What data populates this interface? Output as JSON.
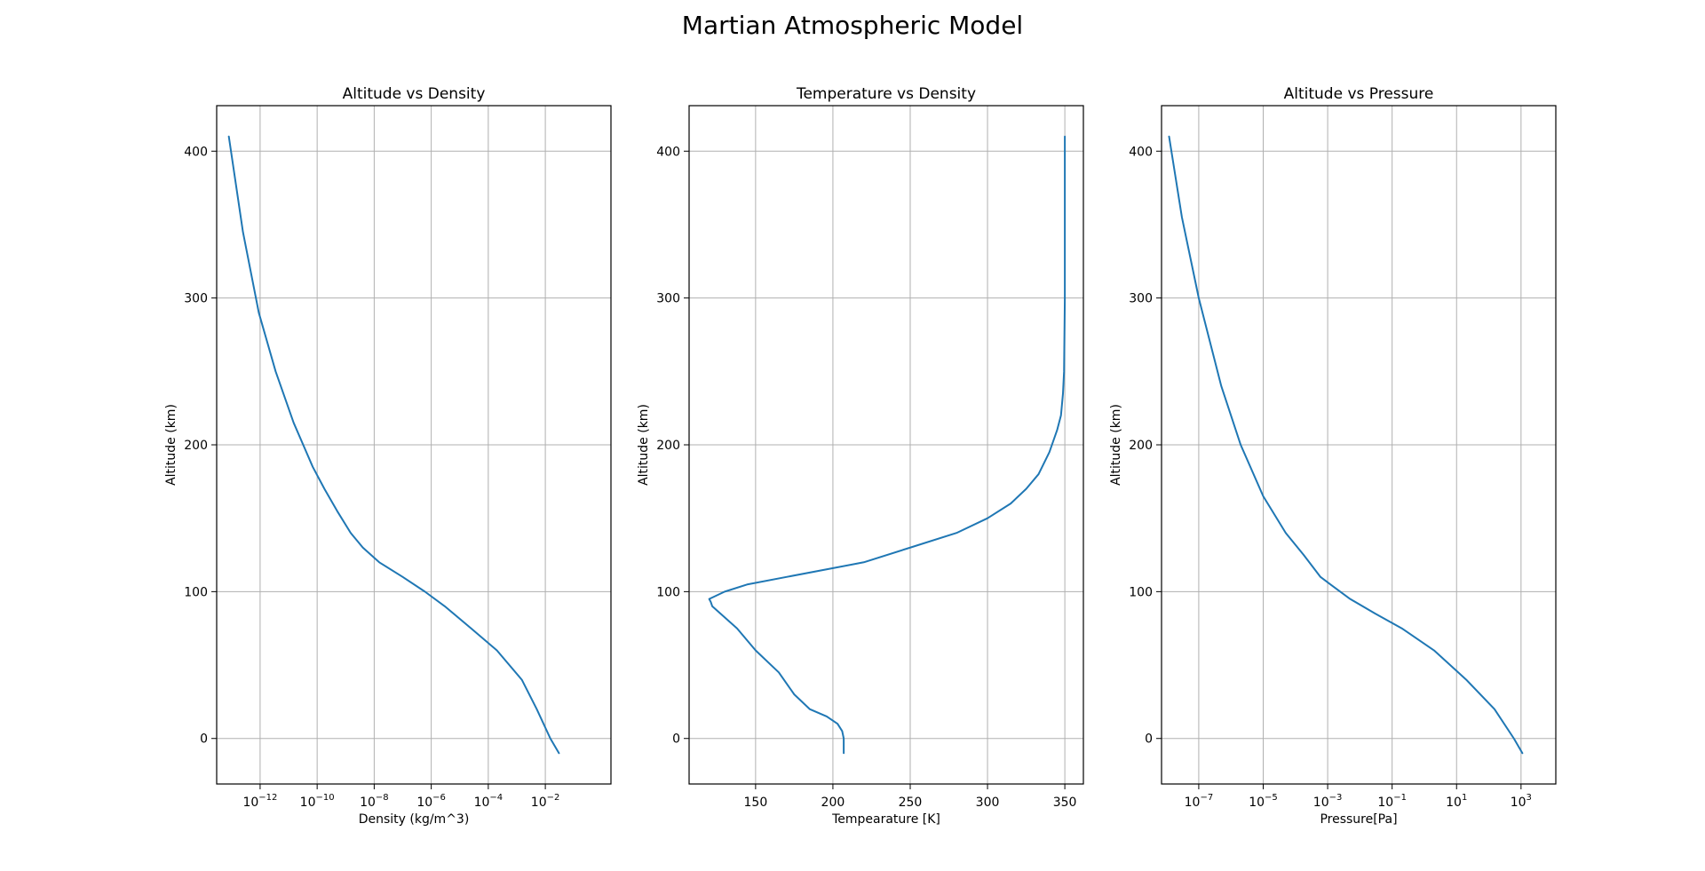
{
  "figure": {
    "suptitle": "Martian Atmospheric Model"
  },
  "chart_data": [
    {
      "type": "line",
      "title": "Altitude vs Density",
      "xlabel": "Density (kg/m^3)",
      "ylabel": "Altitude (km)",
      "xscale": "log",
      "xlim": [
        3e-14,
        2.0
      ],
      "ylim": [
        -31,
        431
      ],
      "grid": true,
      "xticks": [
        {
          "value": 1e-12,
          "base": "10",
          "exp": "−12"
        },
        {
          "value": 1e-10,
          "base": "10",
          "exp": "−10"
        },
        {
          "value": 1e-08,
          "base": "10",
          "exp": "−8"
        },
        {
          "value": 1e-06,
          "base": "10",
          "exp": "−6"
        },
        {
          "value": 0.0001,
          "base": "10",
          "exp": "−4"
        },
        {
          "value": 0.01,
          "base": "10",
          "exp": "−2"
        }
      ],
      "yticks": [
        0,
        100,
        200,
        300,
        400
      ],
      "series": [
        {
          "color": "#1f77b4",
          "x": [
            0.03,
            0.015,
            0.005,
            0.0015,
            0.0002,
            2.5e-05,
            3e-06,
            6e-07,
            1e-07,
            1.5e-08,
            4e-09,
            1.5e-09,
            5e-10,
            1.8e-10,
            7e-11,
            1.5e-11,
            3.5e-12,
            9e-13,
            2.5e-13,
            8e-14
          ],
          "y": [
            -10,
            0,
            20,
            40,
            60,
            75,
            90,
            100,
            110,
            120,
            130,
            140,
            155,
            170,
            185,
            215,
            250,
            290,
            345,
            410
          ]
        }
      ]
    },
    {
      "type": "line",
      "title": "Temperature vs Density",
      "xlabel": "Tempearature [K]",
      "ylabel": "Altitude (km)",
      "xscale": "linear",
      "xlim": [
        107,
        362
      ],
      "ylim": [
        -31,
        431
      ],
      "grid": true,
      "xticks": [
        150,
        200,
        250,
        300,
        350
      ],
      "yticks": [
        0,
        100,
        200,
        300,
        400
      ],
      "series": [
        {
          "color": "#1f77b4",
          "x": [
            207,
            207,
            206,
            203,
            196,
            185,
            175,
            165,
            150,
            138,
            122,
            121,
            120,
            130,
            145,
            170,
            220,
            250,
            280,
            300,
            315,
            325,
            333,
            340,
            345,
            347.5,
            348.8,
            349.5,
            350,
            350
          ],
          "y": [
            -10,
            0,
            5,
            10,
            15,
            20,
            30,
            45,
            60,
            75,
            90,
            93,
            95,
            100,
            105,
            110,
            120,
            130,
            140,
            150,
            160,
            170,
            180,
            195,
            210,
            220,
            235,
            250,
            300,
            410
          ]
        }
      ]
    },
    {
      "type": "line",
      "title": "Altitude vs Pressure",
      "xlabel": "Pressure[Pa]",
      "ylabel": "Altitude (km)",
      "xscale": "log",
      "xlim": [
        7e-09,
        12000.0
      ],
      "ylim": [
        -31,
        431
      ],
      "grid": true,
      "xticks": [
        {
          "value": 1e-07,
          "base": "10",
          "exp": "−7"
        },
        {
          "value": 1e-05,
          "base": "10",
          "exp": "−5"
        },
        {
          "value": 0.001,
          "base": "10",
          "exp": "−3"
        },
        {
          "value": 0.1,
          "base": "10",
          "exp": "−1"
        },
        {
          "value": 10,
          "base": "10",
          "exp": "1"
        },
        {
          "value": 1000,
          "base": "10",
          "exp": "3"
        }
      ],
      "yticks": [
        0,
        100,
        200,
        300,
        400
      ],
      "series": [
        {
          "color": "#1f77b4",
          "x": [
            1100,
            600,
            150,
            20,
            2,
            0.2,
            0.03,
            0.005,
            0.0012,
            0.0006,
            0.00018,
            5e-05,
            1e-05,
            2e-06,
            5e-07,
            1e-07,
            3e-08,
            1.2e-08
          ],
          "y": [
            -10,
            0,
            20,
            40,
            60,
            75,
            85,
            95,
            105,
            110,
            125,
            140,
            165,
            200,
            240,
            300,
            355,
            410
          ]
        }
      ]
    }
  ]
}
